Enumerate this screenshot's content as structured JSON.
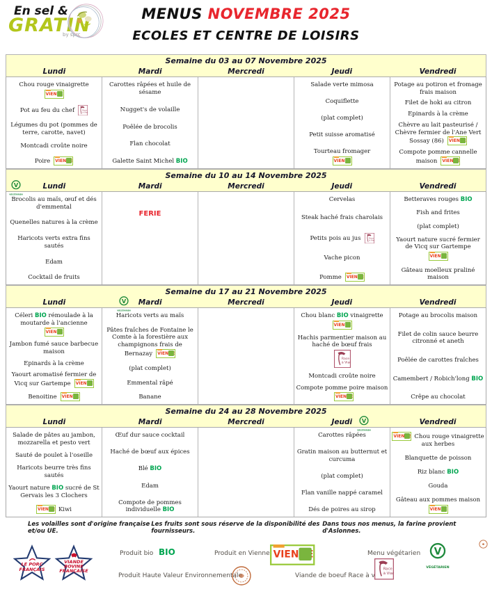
{
  "header": {
    "logo": {
      "line1": "En sel &",
      "line2": "GRATIN",
      "byline": "by sprc"
    },
    "title_black": "MENUS ",
    "title_red": "NOVEMBRE 2025",
    "subtitle": "ECOLES ET CENTRE DE LOISIRS"
  },
  "icon_labels": {
    "vienne": "VIENNE",
    "vegetarian": "VÉGÉTARIEN",
    "veg_letter": "V",
    "race_line1": "Race",
    "race_line2": "à Viande"
  },
  "weeks": [
    {
      "title": "Semaine du 03 au 07 Novembre 2025",
      "vegetarian_day": null,
      "days": [
        {
          "label": "Lundi",
          "items": [
            {
              "text": "Chou rouge vinaigrette",
              "icons": [
                "vienne"
              ],
              "icon_pos": "below"
            },
            {
              "text": "Pot au feu du chef",
              "icons": [
                "race"
              ],
              "icon_pos": "right"
            },
            {
              "text": "Légumes du pot (pommes de terre, carotte, navet)"
            },
            {
              "text": "Montcadi croûte noire"
            },
            {
              "text": "Poire",
              "icons": [
                "vienne"
              ],
              "icon_pos": "right"
            }
          ]
        },
        {
          "label": "Mardi",
          "items": [
            {
              "text": "Carottes râpées et huile de sésame"
            },
            {
              "text": "Nugget's de volaille"
            },
            {
              "text": "Poêlée de brocolis"
            },
            {
              "text": "Flan chocolat"
            },
            {
              "text": "Galette Saint Michel BIO"
            }
          ]
        },
        {
          "label": "Mercredi",
          "items": []
        },
        {
          "label": "Jeudi",
          "items": [
            {
              "text": "Salade verte mimosa"
            },
            {
              "text": "Coquiflette"
            },
            {
              "text": "(plat complet)"
            },
            {
              "text": "Petit suisse aromatisé"
            },
            {
              "text": "Tourteau fromager",
              "icons": [
                "vienne"
              ],
              "icon_pos": "below"
            }
          ]
        },
        {
          "label": "Vendredi",
          "items": [
            {
              "text": "Potage au potiron et fromage frais maison"
            },
            {
              "text": "Filet de hoki au citron"
            },
            {
              "text": "Epinards à la crème"
            },
            {
              "text": "Chèvre au lait pasteurisé / Chèvre fermier de l'Ane Vert Sossay (86)",
              "icons": [
                "vienne"
              ],
              "icon_pos": "right"
            },
            {
              "text": "Compote pomme cannelle maison",
              "icons": [
                "vienne"
              ],
              "icon_pos": "right"
            }
          ]
        }
      ]
    },
    {
      "title": "Semaine du 10 au 14 Novembre 2025",
      "vegetarian_day": "Lundi",
      "days": [
        {
          "label": "Lundi",
          "items": [
            {
              "text": "Brocolis au maïs, œuf et dés d'emmental"
            },
            {
              "text": "Quenelles natures à la crème"
            },
            {
              "text": "Haricots verts extra fins sautés"
            },
            {
              "text": "Edam"
            },
            {
              "text": "Cocktail de fruits"
            }
          ]
        },
        {
          "label": "Mardi",
          "items": [
            {
              "text": "FERIE",
              "holiday": true
            }
          ]
        },
        {
          "label": "Mercredi",
          "items": []
        },
        {
          "label": "Jeudi",
          "items": [
            {
              "text": "Cervelas"
            },
            {
              "text": "Steak haché frais charolais"
            },
            {
              "text": "Petits pois au jus",
              "icons": [
                "race"
              ],
              "icon_pos": "right"
            },
            {
              "text": "Vache picon"
            },
            {
              "text": "Pomme",
              "icons": [
                "vienne"
              ],
              "icon_pos": "right"
            }
          ]
        },
        {
          "label": "Vendredi",
          "items": [
            {
              "text": "Betteraves rouges BIO"
            },
            {
              "text": "Fish and frites"
            },
            {
              "text": "(plat complet)"
            },
            {
              "text": "Yaourt nature sucré fermier de Vicq sur Gartempe",
              "icons": [
                "vienne"
              ],
              "icon_pos": "below"
            },
            {
              "text": "Gâteau moelleux praliné maison"
            }
          ]
        }
      ]
    },
    {
      "title": "Semaine du 17 au 21 Novembre 2025",
      "vegetarian_day": "Mardi",
      "days": [
        {
          "label": "Lundi",
          "items": [
            {
              "text": "Céleri BIO rémoulade à la moutarde à l'ancienne",
              "icons": [
                "vienne"
              ],
              "icon_pos": "below"
            },
            {
              "text": "Jambon fumé sauce barbecue maison"
            },
            {
              "text": "Epinards à la crème"
            },
            {
              "text": "Yaourt aromatisé fermier de Vicq sur Gartempe",
              "icons": [
                "vienne"
              ],
              "icon_pos": "right"
            },
            {
              "text": "Benoitine",
              "icons": [
                "vienne"
              ],
              "icon_pos": "right"
            }
          ]
        },
        {
          "label": "Mardi",
          "items": [
            {
              "text": "Haricots verts au maïs"
            },
            {
              "text": "Pâtes fraîches de Fontaine le Comte à la forestière aux champignons frais de Bernazay",
              "icons": [
                "vienne"
              ],
              "icon_pos": "right"
            },
            {
              "text": "(plat complet)"
            },
            {
              "text": "Emmental râpé"
            },
            {
              "text": "Banane"
            }
          ]
        },
        {
          "label": "Mercredi",
          "items": []
        },
        {
          "label": "Jeudi",
          "items": [
            {
              "text": "Chou blanc BIO vinaigrette",
              "icons": [
                "vienne"
              ],
              "icon_pos": "below"
            },
            {
              "text": "Hachis parmentier maison au haché de bœuf frais",
              "icons": [
                "race-lg"
              ],
              "icon_pos": "below"
            },
            {
              "text": "Montcadi croûte noire"
            },
            {
              "text": "Compote pomme poire maison",
              "icons": [
                "vienne"
              ],
              "icon_pos": "right"
            }
          ]
        },
        {
          "label": "Vendredi",
          "items": [
            {
              "text": "Potage au brocolis maison"
            },
            {
              "text": "Filet de colin sauce beurre citronné et aneth"
            },
            {
              "text": "Poêlée de carottes fraîches"
            },
            {
              "text": "Camembert / Robich'long BIO"
            },
            {
              "text": "Crêpe au chocolat"
            }
          ]
        }
      ]
    },
    {
      "title": "Semaine du 24 au 28 Novembre 2025",
      "vegetarian_day": "Jeudi",
      "days": [
        {
          "label": "Lundi",
          "items": [
            {
              "text": "Salade de pâtes au jambon, mozzarella et pesto vert"
            },
            {
              "text": "Sauté de poulet à l'oseille"
            },
            {
              "text": "Haricots beurre très fins sautés"
            },
            {
              "text": "Yaourt nature BIO sucré de St Gervais les 3 Clochers"
            },
            {
              "text": "Kiwi",
              "icons": [
                "vienne"
              ],
              "icon_pos": "left"
            }
          ]
        },
        {
          "label": "Mardi",
          "items": [
            {
              "text": "Œuf dur sauce cocktail"
            },
            {
              "text": "Haché de bœuf aux épices"
            },
            {
              "text": "Blé BIO"
            },
            {
              "text": "Edam"
            },
            {
              "text": "Compote de pommes individuelle BIO"
            }
          ]
        },
        {
          "label": "Mercredi",
          "items": []
        },
        {
          "label": "Jeudi",
          "items": [
            {
              "text": "Carottes râpées"
            },
            {
              "text": "Gratin maison au butternut et curcuma"
            },
            {
              "text": "(plat complet)"
            },
            {
              "text": "Flan vanille nappé caramel"
            },
            {
              "text": "Dés de poires au sirop"
            }
          ]
        },
        {
          "label": "Vendredi",
          "items": [
            {
              "text": "Chou rouge vinaigrette aux herbes",
              "icons": [
                "vienne"
              ],
              "icon_pos": "left"
            },
            {
              "text": "Blanquette de poisson"
            },
            {
              "text": "Riz blanc BIO"
            },
            {
              "text": "Gouda"
            },
            {
              "text": "Gâteau aux pommes maison",
              "icons": [
                "vienne"
              ],
              "icon_pos": "below"
            }
          ]
        }
      ]
    }
  ],
  "footnotes": [
    "Les volailles sont d'origine française et/ou UE.",
    "Les fruits sont sous réserve de la disponibilité des fournisseurs.",
    "Dans tous nos menus, la farine provient d'Aslonnes."
  ],
  "legend": {
    "bio_label": "BIO",
    "logos": [
      {
        "name": "le-porc-francais",
        "lines": [
          "LE PORC",
          "FRANÇAIS"
        ]
      },
      {
        "name": "viande-bovine-francaise",
        "lines": [
          "VIANDE",
          "BOVINE",
          "FRANÇAISE"
        ]
      }
    ],
    "items": [
      {
        "label": "Produit bio"
      },
      {
        "label": "Produit en Vienne"
      },
      {
        "label": "Menu végétarien"
      },
      {
        "label": "Produit Haute Valeur Environnementale"
      },
      {
        "label": "Viande de boeuf Race à viande"
      }
    ]
  },
  "colors": {
    "accent_red": "#e8262e",
    "bio_green": "#00a550",
    "vegetarian_green": "#1e8a3c",
    "band_yellow": "#ffffcd",
    "logo_green": "#b3c61c",
    "vienne_red": "#e8401c",
    "vienne_green": "#8bc53f",
    "race_maroon": "#9c3f55",
    "star_navy": "#223a70",
    "star_red": "#c8102e",
    "seal_orange": "#c06a3a"
  }
}
